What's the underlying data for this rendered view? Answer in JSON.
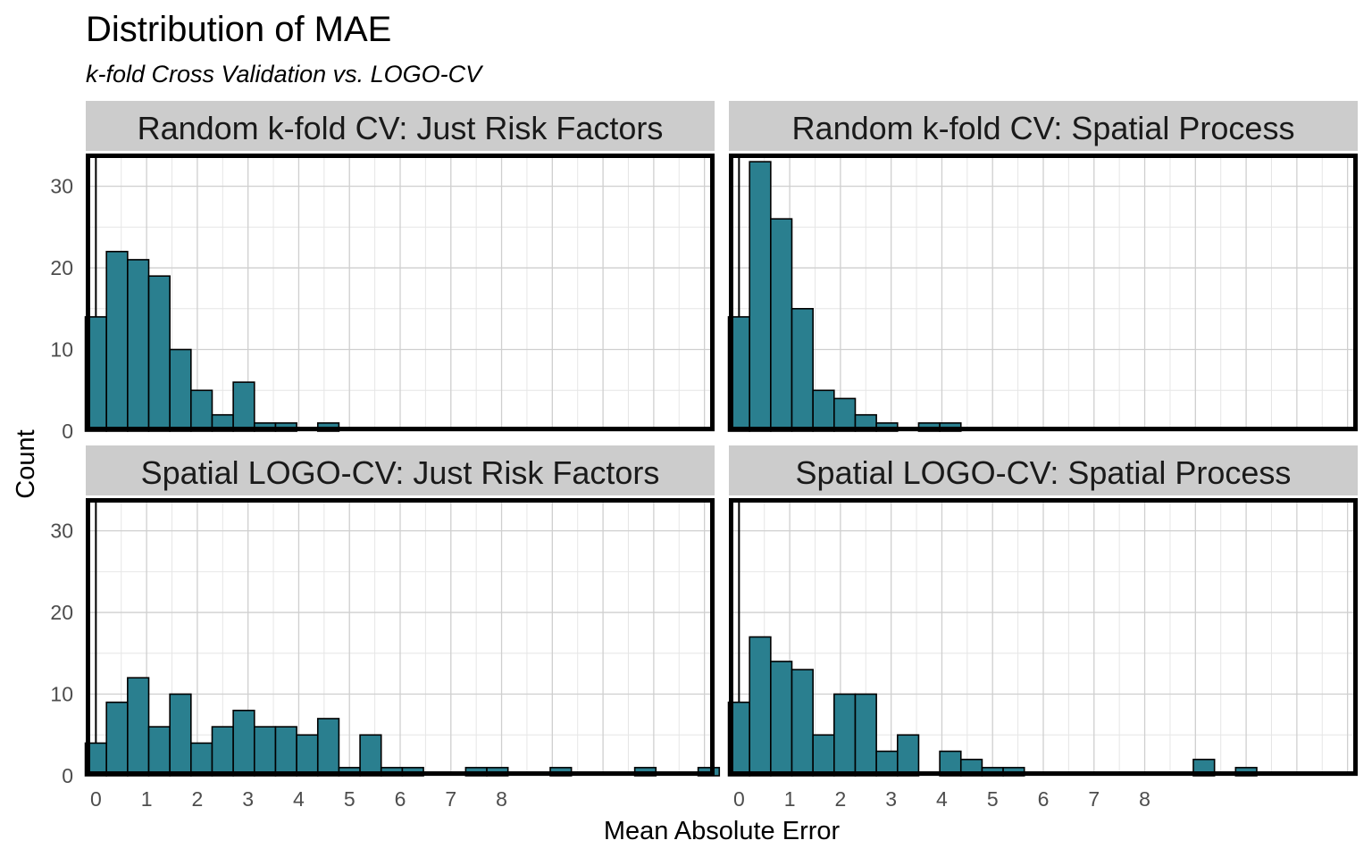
{
  "chart_data": {
    "type": "bar",
    "title": "Distribution of MAE",
    "subtitle": "k-fold Cross Validation vs. LOGO-CV",
    "xlabel": "Mean Absolute Error",
    "ylabel": "Count",
    "xlim": [
      -0.2,
      12.2
    ],
    "ylim": [
      0,
      34
    ],
    "x_ticks": [
      0,
      1,
      2,
      3,
      4,
      5,
      6,
      7,
      8
    ],
    "y_ticks": [
      0,
      10,
      20,
      30
    ],
    "bin_width": 0.4167,
    "bin_start": -0.2083,
    "grid": true,
    "fill_color": "#2a7f8f",
    "panels": [
      {
        "name": "Random k-fold CV: Just Risk Factors",
        "counts": [
          14,
          22,
          21,
          19,
          10,
          5,
          2,
          6,
          1,
          1,
          0,
          1,
          0,
          0,
          0,
          0,
          0,
          0,
          0,
          0,
          0,
          0,
          0,
          0,
          0,
          0,
          0,
          0,
          0,
          0
        ]
      },
      {
        "name": "Random k-fold CV: Spatial Process",
        "counts": [
          14,
          33,
          26,
          15,
          5,
          4,
          2,
          1,
          0,
          1,
          1,
          0,
          0,
          0,
          0,
          0,
          0,
          0,
          0,
          0,
          0,
          0,
          0,
          0,
          0,
          0,
          0,
          0,
          0,
          0
        ]
      },
      {
        "name": "Spatial LOGO-CV: Just Risk Factors",
        "counts": [
          4,
          9,
          12,
          6,
          10,
          4,
          6,
          8,
          6,
          6,
          5,
          7,
          1,
          5,
          1,
          1,
          0,
          0,
          1,
          1,
          0,
          0,
          1,
          0,
          0,
          0,
          1,
          0,
          0,
          1
        ]
      },
      {
        "name": "Spatial LOGO-CV: Spatial Process",
        "counts": [
          9,
          17,
          14,
          13,
          5,
          10,
          10,
          3,
          5,
          0,
          3,
          2,
          1,
          1,
          0,
          0,
          0,
          0,
          0,
          0,
          0,
          0,
          2,
          0,
          1,
          0,
          0,
          0,
          0,
          0
        ]
      }
    ]
  }
}
